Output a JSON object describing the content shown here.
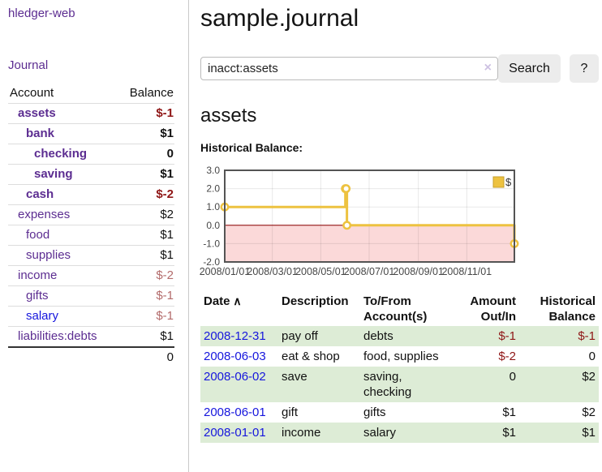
{
  "sidebar": {
    "brand": "hledger-web",
    "journal_link": "Journal",
    "accounts_table": {
      "account_header": "Account",
      "balance_header": "Balance",
      "accounts": [
        {
          "name": "assets",
          "depth": 1,
          "bold": true,
          "balance": "$-1"
        },
        {
          "name": "bank",
          "depth": 2,
          "bold": true,
          "balance": "$1"
        },
        {
          "name": "checking",
          "depth": 3,
          "bold": true,
          "balance": "0"
        },
        {
          "name": "saving",
          "depth": 3,
          "bold": true,
          "balance": "$1"
        },
        {
          "name": "cash",
          "depth": 2,
          "bold": true,
          "balance": "$-2"
        },
        {
          "name": "expenses",
          "depth": 1,
          "bold": false,
          "balance": "$2"
        },
        {
          "name": "food",
          "depth": 2,
          "bold": false,
          "balance": "$1"
        },
        {
          "name": "supplies",
          "depth": 2,
          "bold": false,
          "balance": "$1"
        },
        {
          "name": "income",
          "depth": 1,
          "bold": false,
          "balance": "$-2"
        },
        {
          "name": "gifts",
          "depth": 2,
          "bold": false,
          "balance": "$-1"
        },
        {
          "name": "salary",
          "depth": 2,
          "bold": false,
          "balance": "$-1",
          "unvisited": true
        },
        {
          "name": "liabilities:debts",
          "depth": 1,
          "bold": false,
          "balance": "$1"
        }
      ],
      "total": "0"
    }
  },
  "header": {
    "title": "sample.journal"
  },
  "search": {
    "value": "inacct:assets",
    "clear_icon": "×",
    "button_label": "Search",
    "help_label": "?"
  },
  "account_page": {
    "heading": "assets",
    "chart_label": "Historical Balance:"
  },
  "chart_data": {
    "type": "line",
    "step": true,
    "title": "Historical Balance",
    "x_start": "2008-01-01",
    "x_range_days": 365,
    "ylim": [
      -2,
      3
    ],
    "y_ticks": [
      "3.0",
      "2.0",
      "1.0",
      "0.0",
      "-1.0",
      "-2.0"
    ],
    "x_ticks": [
      {
        "date": "2008-01-01",
        "label": "2008/01/01"
      },
      {
        "date": "2008-03-01",
        "label": "2008/03/01"
      },
      {
        "date": "2008-05-01",
        "label": "2008/05/01"
      },
      {
        "date": "2008-07-01",
        "label": "2008/07/01"
      },
      {
        "date": "2008-09-01",
        "label": "2008/09/01"
      },
      {
        "date": "2008-11-01",
        "label": "2008/11/01"
      }
    ],
    "series": [
      {
        "name": "$",
        "color": "#edc240",
        "points": [
          [
            "2008-01-01",
            1
          ],
          [
            "2008-06-01",
            2
          ],
          [
            "2008-06-02",
            2
          ],
          [
            "2008-06-03",
            0
          ],
          [
            "2008-12-31",
            -1
          ]
        ]
      }
    ],
    "legend_position": "top-right",
    "grid": true,
    "zero_line_color": "#8b0000",
    "negative_region_color": "#fbd9d9",
    "border_color": "#545454"
  },
  "register": {
    "columns": [
      {
        "label": "Date",
        "sort_icon": "∧",
        "align": "left"
      },
      {
        "label": "Description",
        "align": "left"
      },
      {
        "label": "To/From Account(s)",
        "align": "left"
      },
      {
        "label": "Amount Out/In",
        "align": "right"
      },
      {
        "label": "Historical Balance",
        "align": "right"
      }
    ],
    "rows": [
      {
        "date": "2008-12-31",
        "description": "pay off",
        "accounts": "debts",
        "amount": "$-1",
        "balance": "$-1"
      },
      {
        "date": "2008-06-03",
        "description": "eat & shop",
        "accounts": "food, supplies",
        "amount": "$-2",
        "balance": "0"
      },
      {
        "date": "2008-06-02",
        "description": "save",
        "accounts": "saving, checking",
        "amount": "0",
        "balance": "$2"
      },
      {
        "date": "2008-06-01",
        "description": "gift",
        "accounts": "gifts",
        "amount": "$1",
        "balance": "$2"
      },
      {
        "date": "2008-01-01",
        "description": "income",
        "accounts": "salary",
        "amount": "$1",
        "balance": "$1"
      }
    ]
  },
  "colors": {
    "link_purple": "#5c2d91",
    "link_blue": "#1616dd",
    "negative_strong": "#8f1616",
    "negative_muted": "#b36b6b",
    "row_green": "#ddecd6",
    "series_gold": "#edc240"
  }
}
